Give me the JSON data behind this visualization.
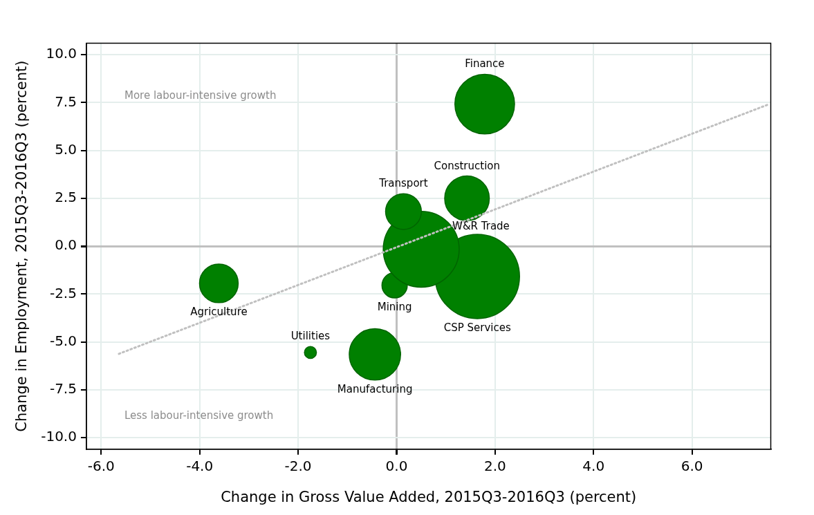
{
  "chart_data": {
    "type": "bubble",
    "xlabel": "Change in Gross Value Added, 2015Q3-2016Q3 (percent)",
    "ylabel": "Change in Employment, 2015Q3-2016Q3 (percent)",
    "xlim": [
      -6.3,
      7.6
    ],
    "xticks": [
      {
        "value": -6,
        "label": "-6.0"
      },
      {
        "value": -4,
        "label": "-4.0"
      },
      {
        "value": -2,
        "label": "-2.0"
      },
      {
        "value": 0,
        "label": "0.0"
      },
      {
        "value": 2,
        "label": "2.0"
      },
      {
        "value": 4,
        "label": "4.0"
      },
      {
        "value": 6,
        "label": "6.0"
      }
    ],
    "ylim": [
      -10.6,
      10.6
    ],
    "yticks": [
      {
        "value": -10,
        "label": "-10.0"
      },
      {
        "value": -7.5,
        "label": "-7.5"
      },
      {
        "value": -5,
        "label": "-5.0"
      },
      {
        "value": -2.5,
        "label": "-2.5"
      },
      {
        "value": 0,
        "label": "0.0"
      },
      {
        "value": 2.5,
        "label": "2.5"
      },
      {
        "value": 5,
        "label": "5.0"
      },
      {
        "value": 7.5,
        "label": "7.5"
      },
      {
        "value": 10,
        "label": "10.0"
      }
    ],
    "grid": true,
    "legend": false,
    "series": [
      {
        "name": "Finance",
        "color": "#008000",
        "x": [
          1.79
        ],
        "values": [
          7.42
        ],
        "sizes": [
          0.5
        ]
      },
      {
        "name": "Construction",
        "color": "#008000",
        "x": [
          1.43
        ],
        "values": [
          2.5
        ],
        "sizes": [
          0.28
        ]
      },
      {
        "name": "Transport",
        "color": "#008000",
        "x": [
          0.14
        ],
        "values": [
          1.81
        ],
        "sizes": [
          0.18
        ]
      },
      {
        "name": "W&R Trade",
        "color": "#008000",
        "x": [
          0.5
        ],
        "values": [
          -0.16
        ],
        "sizes": [
          0.81
        ]
      },
      {
        "name": "CSP Services",
        "color": "#008000",
        "x": [
          1.64
        ],
        "values": [
          -1.58
        ],
        "sizes": [
          1
        ]
      },
      {
        "name": "Mining",
        "color": "#008000",
        "x": [
          -0.04
        ],
        "values": [
          -2.04
        ],
        "sizes": [
          0.09
        ]
      },
      {
        "name": "Agriculture",
        "color": "#008000",
        "x": [
          -3.61
        ],
        "values": [
          -1.94
        ],
        "sizes": [
          0.21
        ]
      },
      {
        "name": "Utilities",
        "color": "#008000",
        "x": [
          -1.75
        ],
        "values": [
          -5.55
        ],
        "sizes": [
          0.02
        ]
      },
      {
        "name": "Manufacturing",
        "color": "#008000",
        "x": [
          -0.44
        ],
        "values": [
          -5.65
        ],
        "sizes": [
          0.37
        ]
      },
      {
        "type": "line",
        "color": "#c0c0c0",
        "line_style": "dotted",
        "marker": "none",
        "x": [
          -5.64,
          7.57
        ],
        "values": [
          -5.62,
          7.42
        ]
      }
    ],
    "annotations": [
      "More labour-intensive growth",
      "Less labour-intensive growth"
    ]
  }
}
